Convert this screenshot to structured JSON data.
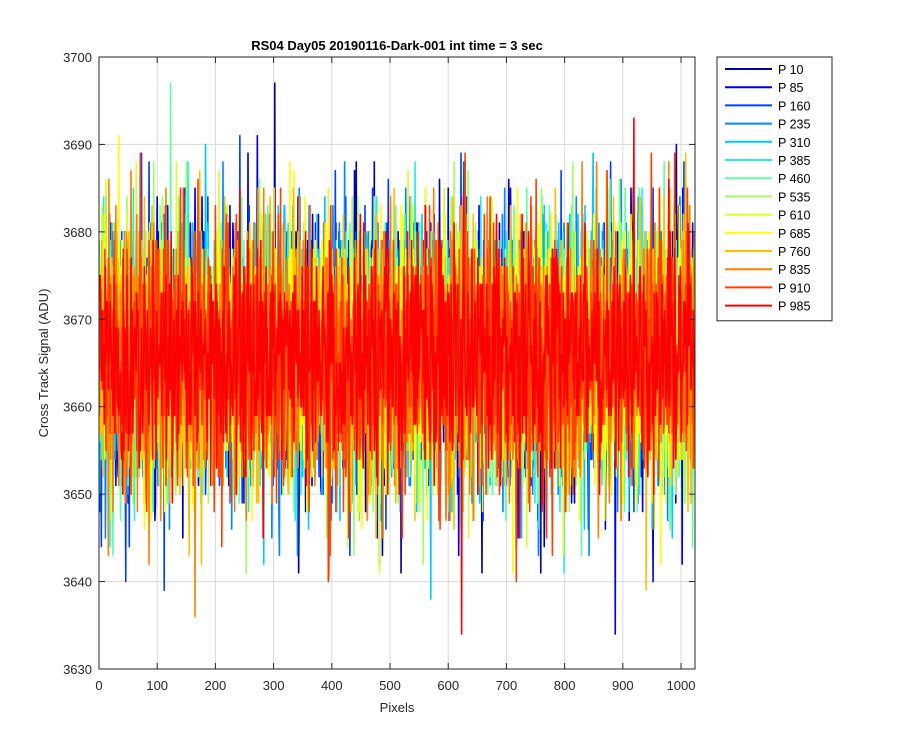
{
  "chart_data": {
    "type": "line",
    "title": "RS04 Day05 20190116-Dark-001 int time = 3 sec",
    "xlabel": "Pixels",
    "ylabel": "Cross Track Signal (ADU)",
    "xlim": [
      0,
      1024
    ],
    "ylim": [
      3630,
      3700
    ],
    "xticks": [
      0,
      100,
      200,
      300,
      400,
      500,
      600,
      700,
      800,
      900,
      1000
    ],
    "yticks": [
      3630,
      3640,
      3650,
      3660,
      3670,
      3680,
      3690,
      3700
    ],
    "grid": true,
    "legend_position": "outside-top-right",
    "series": [
      {
        "name": "P 10",
        "color": "#0000a8",
        "mean": 3666,
        "spread": 7.5,
        "max": 3697,
        "min": 3641
      },
      {
        "name": "P 85",
        "color": "#0000e8",
        "mean": 3666,
        "spread": 7.5,
        "max": 3691,
        "min": 3634
      },
      {
        "name": "P 160",
        "color": "#0040ff",
        "mean": 3666,
        "spread": 7.5,
        "max": 3691,
        "min": 3639
      },
      {
        "name": "P 235",
        "color": "#0088ff",
        "mean": 3666,
        "spread": 7.5,
        "max": 3688,
        "min": 3643
      },
      {
        "name": "P 310",
        "color": "#00c8ff",
        "mean": 3666,
        "spread": 7.5,
        "max": 3690,
        "min": 3638
      },
      {
        "name": "P 385",
        "color": "#20f0e0",
        "mean": 3666,
        "spread": 7.5,
        "max": 3688,
        "min": 3641
      },
      {
        "name": "P 460",
        "color": "#60ffa0",
        "mean": 3666,
        "spread": 7.5,
        "max": 3697,
        "min": 3643
      },
      {
        "name": "P 535",
        "color": "#a0ff60",
        "mean": 3666,
        "spread": 7.5,
        "max": 3688,
        "min": 3641
      },
      {
        "name": "P 610",
        "color": "#d8ff28",
        "mean": 3666,
        "spread": 7.5,
        "max": 3688,
        "min": 3641
      },
      {
        "name": "P 685",
        "color": "#ffff00",
        "mean": 3666,
        "spread": 7.5,
        "max": 3691,
        "min": 3641
      },
      {
        "name": "P 760",
        "color": "#ffc000",
        "mean": 3666,
        "spread": 7.5,
        "max": 3689,
        "min": 3639
      },
      {
        "name": "P 835",
        "color": "#ff8000",
        "mean": 3666,
        "spread": 7.5,
        "max": 3688,
        "min": 3636
      },
      {
        "name": "P 910",
        "color": "#ff4000",
        "mean": 3666,
        "spread": 7.5,
        "max": 3689,
        "min": 3640
      },
      {
        "name": "P 985",
        "color": "#ff0000",
        "mean": 3666,
        "spread": 6.5,
        "max": 3693,
        "min": 3634
      }
    ]
  }
}
